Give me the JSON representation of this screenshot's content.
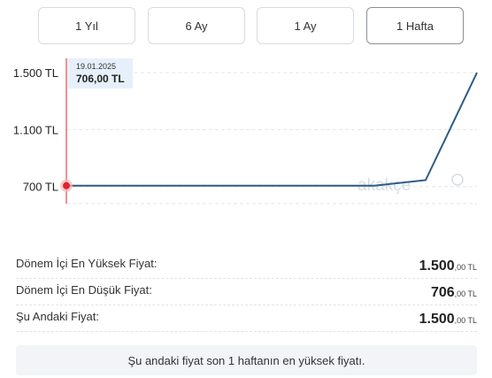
{
  "tabs": [
    {
      "label": "1 Yıl",
      "active": false
    },
    {
      "label": "6 Ay",
      "active": false
    },
    {
      "label": "1 Ay",
      "active": false
    },
    {
      "label": "1 Hafta",
      "active": true
    }
  ],
  "chart_data": {
    "type": "line",
    "ytick_labels": [
      "1.500 TL",
      "1.100 TL",
      "700 TL"
    ],
    "ytick_values": [
      1500,
      1100,
      700
    ],
    "ylim": [
      580,
      1600
    ],
    "series": [
      {
        "values": [
          706,
          706,
          706,
          706,
          706,
          706,
          706,
          745,
          1500
        ]
      }
    ],
    "tooltip": {
      "date": "19.01.2025",
      "price": "706,00 TL"
    },
    "watermark": "akakçe",
    "colors": {
      "line": "#2d5b86",
      "cursor": "#e8474c",
      "grid": "#e3e6ea"
    }
  },
  "stats": [
    {
      "label": "Dönem İçi En Yüksek Fiyat:",
      "whole": "1.500",
      "cents": ",00",
      "currency": " TL"
    },
    {
      "label": "Dönem İçi En Düşük Fiyat:",
      "whole": "706",
      "cents": ",00",
      "currency": " TL"
    },
    {
      "label": "Şu Andaki Fiyat:",
      "whole": "1.500",
      "cents": ",00",
      "currency": " TL"
    }
  ],
  "note": "Şu andaki fiyat son 1 haftanın en yüksek fiyatı."
}
